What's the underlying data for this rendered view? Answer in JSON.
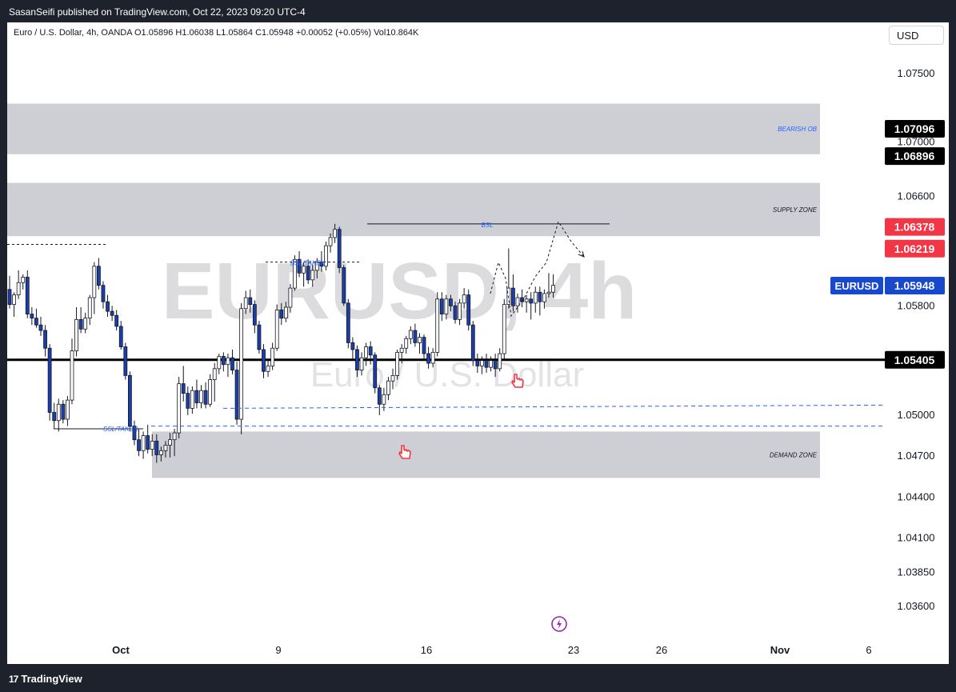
{
  "header": {
    "publisher": "SasanSeifi published on TradingView.com, Oct 22, 2023 09:20 UTC-4"
  },
  "legend": {
    "text": "Euro / U.S. Dollar, 4h, OANDA  O1.05896  H1.06038  L1.05864  C1.05948  +0.00052 (+0.05%)  Vol10.864K"
  },
  "currency_button": "USD",
  "watermark": {
    "symbol": "EURUSD, 4h",
    "name": "Euro / U.S. Dollar"
  },
  "footer": {
    "brand": "TradingView",
    "logo_mark": "17"
  },
  "colors": {
    "bull_body": "#ffffff",
    "bear_body": "#1b3ea8",
    "wick": "#131722",
    "zone": "#cdcfd4",
    "red_label": "#f23645",
    "blue_label": "#1848cc",
    "text_blue": "#2962ff"
  },
  "chart_data": {
    "type": "candlestick",
    "symbol": "EURUSD",
    "timeframe": "4h",
    "y_axis": {
      "ticks": [
        "1.07500",
        "1.07000",
        "1.06600",
        "1.05800",
        "1.05000",
        "1.04700",
        "1.04400",
        "1.04100",
        "1.03850",
        "1.03600"
      ]
    },
    "x_axis": {
      "ticks": [
        "Oct",
        "9",
        "16",
        "23",
        "26",
        "Nov",
        "6"
      ]
    },
    "price_labels": [
      {
        "value": "1.07096",
        "style": "black"
      },
      {
        "value": "1.06896",
        "style": "black"
      },
      {
        "value": "1.06378",
        "style": "red"
      },
      {
        "value": "1.06219",
        "style": "red"
      },
      {
        "value": "1.05948",
        "style": "blue",
        "tag": "EURUSD"
      },
      {
        "value": "1.05405",
        "style": "black"
      }
    ],
    "zones": [
      {
        "label": "BEARISH OB",
        "from": 1.0691,
        "to": 1.0728
      },
      {
        "label": "SUPPLY ZONE",
        "from": 1.0631,
        "to": 1.067
      },
      {
        "label": "DEMAND ZONE",
        "from": 1.0454,
        "to": 1.0488
      }
    ],
    "level_line": 1.05405,
    "annotations": [
      "BSL",
      "BSL/TAKEN",
      "SSL/TAKEN"
    ],
    "candles": [
      {
        "o": 1.0592,
        "h": 1.0602,
        "l": 1.0578,
        "c": 1.0581
      },
      {
        "o": 1.0581,
        "h": 1.059,
        "l": 1.0572,
        "c": 1.0588
      },
      {
        "o": 1.0588,
        "h": 1.0606,
        "l": 1.0585,
        "c": 1.0597
      },
      {
        "o": 1.0597,
        "h": 1.0603,
        "l": 1.0592,
        "c": 1.0601
      },
      {
        "o": 1.0601,
        "h": 1.0606,
        "l": 1.0571,
        "c": 1.0574
      },
      {
        "o": 1.0574,
        "h": 1.0579,
        "l": 1.0566,
        "c": 1.0571
      },
      {
        "o": 1.0571,
        "h": 1.0578,
        "l": 1.0564,
        "c": 1.0566
      },
      {
        "o": 1.0566,
        "h": 1.0572,
        "l": 1.0558,
        "c": 1.0562
      },
      {
        "o": 1.0562,
        "h": 1.0566,
        "l": 1.0543,
        "c": 1.0549
      },
      {
        "o": 1.0549,
        "h": 1.0552,
        "l": 1.0496,
        "c": 1.0502
      },
      {
        "o": 1.0502,
        "h": 1.0509,
        "l": 1.049,
        "c": 1.0496
      },
      {
        "o": 1.0496,
        "h": 1.0512,
        "l": 1.0488,
        "c": 1.0508
      },
      {
        "o": 1.0508,
        "h": 1.0511,
        "l": 1.0494,
        "c": 1.0497
      },
      {
        "o": 1.0497,
        "h": 1.0514,
        "l": 1.0492,
        "c": 1.0511
      },
      {
        "o": 1.0511,
        "h": 1.0556,
        "l": 1.0508,
        "c": 1.0547
      },
      {
        "o": 1.0547,
        "h": 1.0579,
        "l": 1.0543,
        "c": 1.057
      },
      {
        "o": 1.057,
        "h": 1.0579,
        "l": 1.056,
        "c": 1.0563
      },
      {
        "o": 1.0563,
        "h": 1.0575,
        "l": 1.056,
        "c": 1.0571
      },
      {
        "o": 1.0571,
        "h": 1.0588,
        "l": 1.0566,
        "c": 1.0586
      },
      {
        "o": 1.0586,
        "h": 1.0612,
        "l": 1.0574,
        "c": 1.0609
      },
      {
        "o": 1.0609,
        "h": 1.0615,
        "l": 1.0592,
        "c": 1.0595
      },
      {
        "o": 1.0595,
        "h": 1.0598,
        "l": 1.0578,
        "c": 1.0583
      },
      {
        "o": 1.0583,
        "h": 1.0588,
        "l": 1.0572,
        "c": 1.0576
      },
      {
        "o": 1.0576,
        "h": 1.058,
        "l": 1.0569,
        "c": 1.0573
      },
      {
        "o": 1.0573,
        "h": 1.0577,
        "l": 1.0562,
        "c": 1.0565
      },
      {
        "o": 1.0565,
        "h": 1.0569,
        "l": 1.0548,
        "c": 1.055
      },
      {
        "o": 1.055,
        "h": 1.0553,
        "l": 1.0526,
        "c": 1.0529
      },
      {
        "o": 1.0529,
        "h": 1.0532,
        "l": 1.0488,
        "c": 1.0492
      },
      {
        "o": 1.0492,
        "h": 1.0496,
        "l": 1.0478,
        "c": 1.0482
      },
      {
        "o": 1.0482,
        "h": 1.049,
        "l": 1.047,
        "c": 1.0474
      },
      {
        "o": 1.0474,
        "h": 1.0488,
        "l": 1.0468,
        "c": 1.0485
      },
      {
        "o": 1.0485,
        "h": 1.0493,
        "l": 1.0472,
        "c": 1.0475
      },
      {
        "o": 1.0475,
        "h": 1.0486,
        "l": 1.047,
        "c": 1.0481
      },
      {
        "o": 1.0481,
        "h": 1.0486,
        "l": 1.0465,
        "c": 1.0471
      },
      {
        "o": 1.0471,
        "h": 1.0477,
        "l": 1.0466,
        "c": 1.0474
      },
      {
        "o": 1.0474,
        "h": 1.0481,
        "l": 1.0469,
        "c": 1.0478
      },
      {
        "o": 1.0478,
        "h": 1.0487,
        "l": 1.0469,
        "c": 1.0482
      },
      {
        "o": 1.0482,
        "h": 1.049,
        "l": 1.047,
        "c": 1.0487
      },
      {
        "o": 1.0487,
        "h": 1.0528,
        "l": 1.0483,
        "c": 1.0523
      },
      {
        "o": 1.0523,
        "h": 1.0536,
        "l": 1.051,
        "c": 1.0516
      },
      {
        "o": 1.0516,
        "h": 1.0521,
        "l": 1.05,
        "c": 1.0505
      },
      {
        "o": 1.0505,
        "h": 1.0521,
        "l": 1.0501,
        "c": 1.0518
      },
      {
        "o": 1.0518,
        "h": 1.0526,
        "l": 1.0505,
        "c": 1.0509
      },
      {
        "o": 1.0509,
        "h": 1.0522,
        "l": 1.0505,
        "c": 1.0518
      },
      {
        "o": 1.0518,
        "h": 1.0524,
        "l": 1.0505,
        "c": 1.0508
      },
      {
        "o": 1.0508,
        "h": 1.053,
        "l": 1.0506,
        "c": 1.0526
      },
      {
        "o": 1.0526,
        "h": 1.0538,
        "l": 1.051,
        "c": 1.0534
      },
      {
        "o": 1.0534,
        "h": 1.0545,
        "l": 1.053,
        "c": 1.0543
      },
      {
        "o": 1.0543,
        "h": 1.0546,
        "l": 1.0532,
        "c": 1.0537
      },
      {
        "o": 1.0537,
        "h": 1.0545,
        "l": 1.0528,
        "c": 1.0542
      },
      {
        "o": 1.0542,
        "h": 1.0548,
        "l": 1.053,
        "c": 1.0533
      },
      {
        "o": 1.0533,
        "h": 1.0539,
        "l": 1.0493,
        "c": 1.0497
      },
      {
        "o": 1.0497,
        "h": 1.0582,
        "l": 1.0486,
        "c": 1.0578
      },
      {
        "o": 1.0578,
        "h": 1.0591,
        "l": 1.0574,
        "c": 1.0586
      },
      {
        "o": 1.0586,
        "h": 1.0592,
        "l": 1.0575,
        "c": 1.0581
      },
      {
        "o": 1.0581,
        "h": 1.0584,
        "l": 1.056,
        "c": 1.0566
      },
      {
        "o": 1.0566,
        "h": 1.0569,
        "l": 1.0545,
        "c": 1.0548
      },
      {
        "o": 1.0548,
        "h": 1.0552,
        "l": 1.0527,
        "c": 1.0532
      },
      {
        "o": 1.0532,
        "h": 1.0541,
        "l": 1.0528,
        "c": 1.0536
      },
      {
        "o": 1.0536,
        "h": 1.0553,
        "l": 1.0533,
        "c": 1.0549
      },
      {
        "o": 1.0549,
        "h": 1.0581,
        "l": 1.0547,
        "c": 1.0577
      },
      {
        "o": 1.0577,
        "h": 1.0582,
        "l": 1.0566,
        "c": 1.0571
      },
      {
        "o": 1.0571,
        "h": 1.0583,
        "l": 1.0568,
        "c": 1.0579
      },
      {
        "o": 1.0579,
        "h": 1.0596,
        "l": 1.0575,
        "c": 1.0593
      },
      {
        "o": 1.0593,
        "h": 1.0617,
        "l": 1.0591,
        "c": 1.0614
      },
      {
        "o": 1.0614,
        "h": 1.062,
        "l": 1.0601,
        "c": 1.0604
      },
      {
        "o": 1.0604,
        "h": 1.0612,
        "l": 1.0594,
        "c": 1.0609
      },
      {
        "o": 1.0609,
        "h": 1.0614,
        "l": 1.0596,
        "c": 1.0599
      },
      {
        "o": 1.0599,
        "h": 1.061,
        "l": 1.0594,
        "c": 1.0606
      },
      {
        "o": 1.0606,
        "h": 1.0615,
        "l": 1.06,
        "c": 1.0612
      },
      {
        "o": 1.0612,
        "h": 1.062,
        "l": 1.0605,
        "c": 1.0609
      },
      {
        "o": 1.0609,
        "h": 1.0627,
        "l": 1.0606,
        "c": 1.0624
      },
      {
        "o": 1.0624,
        "h": 1.0633,
        "l": 1.0619,
        "c": 1.063
      },
      {
        "o": 1.063,
        "h": 1.064,
        "l": 1.0626,
        "c": 1.0636
      },
      {
        "o": 1.0636,
        "h": 1.0638,
        "l": 1.0604,
        "c": 1.0608
      },
      {
        "o": 1.0608,
        "h": 1.061,
        "l": 1.058,
        "c": 1.0582
      },
      {
        "o": 1.0582,
        "h": 1.0585,
        "l": 1.0549,
        "c": 1.0553
      },
      {
        "o": 1.0553,
        "h": 1.0557,
        "l": 1.054,
        "c": 1.0548
      },
      {
        "o": 1.0548,
        "h": 1.0551,
        "l": 1.0528,
        "c": 1.0533
      },
      {
        "o": 1.0533,
        "h": 1.0546,
        "l": 1.0529,
        "c": 1.0542
      },
      {
        "o": 1.0542,
        "h": 1.0553,
        "l": 1.0536,
        "c": 1.055
      },
      {
        "o": 1.055,
        "h": 1.0554,
        "l": 1.0537,
        "c": 1.0544
      },
      {
        "o": 1.0544,
        "h": 1.0546,
        "l": 1.0516,
        "c": 1.052
      },
      {
        "o": 1.052,
        "h": 1.0522,
        "l": 1.05,
        "c": 1.0508
      },
      {
        "o": 1.0508,
        "h": 1.052,
        "l": 1.0503,
        "c": 1.0515
      },
      {
        "o": 1.0515,
        "h": 1.0528,
        "l": 1.0511,
        "c": 1.0525
      },
      {
        "o": 1.0525,
        "h": 1.0534,
        "l": 1.0519,
        "c": 1.0529
      },
      {
        "o": 1.0529,
        "h": 1.0548,
        "l": 1.0526,
        "c": 1.0546
      },
      {
        "o": 1.0546,
        "h": 1.0552,
        "l": 1.0538,
        "c": 1.0549
      },
      {
        "o": 1.0549,
        "h": 1.0558,
        "l": 1.0545,
        "c": 1.0556
      },
      {
        "o": 1.0556,
        "h": 1.0565,
        "l": 1.0552,
        "c": 1.0562
      },
      {
        "o": 1.0562,
        "h": 1.0567,
        "l": 1.055,
        "c": 1.0553
      },
      {
        "o": 1.0553,
        "h": 1.056,
        "l": 1.0545,
        "c": 1.0557
      },
      {
        "o": 1.0557,
        "h": 1.0559,
        "l": 1.054,
        "c": 1.0545
      },
      {
        "o": 1.0545,
        "h": 1.055,
        "l": 1.0534,
        "c": 1.0538
      },
      {
        "o": 1.0538,
        "h": 1.0549,
        "l": 1.0535,
        "c": 1.0546
      },
      {
        "o": 1.0546,
        "h": 1.059,
        "l": 1.0543,
        "c": 1.0585
      },
      {
        "o": 1.0585,
        "h": 1.059,
        "l": 1.0569,
        "c": 1.0574
      },
      {
        "o": 1.0574,
        "h": 1.0588,
        "l": 1.057,
        "c": 1.0585
      },
      {
        "o": 1.0585,
        "h": 1.0588,
        "l": 1.0576,
        "c": 1.058
      },
      {
        "o": 1.058,
        "h": 1.0583,
        "l": 1.0567,
        "c": 1.057
      },
      {
        "o": 1.057,
        "h": 1.0585,
        "l": 1.0566,
        "c": 1.0582
      },
      {
        "o": 1.0582,
        "h": 1.0593,
        "l": 1.0578,
        "c": 1.0588
      },
      {
        "o": 1.0588,
        "h": 1.0592,
        "l": 1.0562,
        "c": 1.0566
      },
      {
        "o": 1.0566,
        "h": 1.0569,
        "l": 1.0536,
        "c": 1.054
      },
      {
        "o": 1.054,
        "h": 1.0545,
        "l": 1.0531,
        "c": 1.0536
      },
      {
        "o": 1.0536,
        "h": 1.0543,
        "l": 1.053,
        "c": 1.054
      },
      {
        "o": 1.054,
        "h": 1.0545,
        "l": 1.0531,
        "c": 1.0535
      },
      {
        "o": 1.0535,
        "h": 1.0543,
        "l": 1.0532,
        "c": 1.054
      },
      {
        "o": 1.054,
        "h": 1.0545,
        "l": 1.0528,
        "c": 1.0534
      },
      {
        "o": 1.0534,
        "h": 1.0549,
        "l": 1.0532,
        "c": 1.0545
      },
      {
        "o": 1.0545,
        "h": 1.0585,
        "l": 1.0541,
        "c": 1.0581
      },
      {
        "o": 1.0581,
        "h": 1.0622,
        "l": 1.0578,
        "c": 1.0593
      },
      {
        "o": 1.0593,
        "h": 1.0603,
        "l": 1.0576,
        "c": 1.058
      },
      {
        "o": 1.058,
        "h": 1.0589,
        "l": 1.0575,
        "c": 1.0586
      },
      {
        "o": 1.0586,
        "h": 1.0592,
        "l": 1.0579,
        "c": 1.0583
      },
      {
        "o": 1.0583,
        "h": 1.0588,
        "l": 1.0575,
        "c": 1.0585
      },
      {
        "o": 1.0585,
        "h": 1.059,
        "l": 1.057,
        "c": 1.0582
      },
      {
        "o": 1.0582,
        "h": 1.0594,
        "l": 1.0575,
        "c": 1.059
      },
      {
        "o": 1.059,
        "h": 1.0594,
        "l": 1.0573,
        "c": 1.0583
      },
      {
        "o": 1.0583,
        "h": 1.0592,
        "l": 1.0578,
        "c": 1.0589
      },
      {
        "o": 1.0589,
        "h": 1.0604,
        "l": 1.0586,
        "c": 1.059
      },
      {
        "o": 1.059,
        "h": 1.0603,
        "l": 1.0586,
        "c": 1.0595
      }
    ]
  }
}
